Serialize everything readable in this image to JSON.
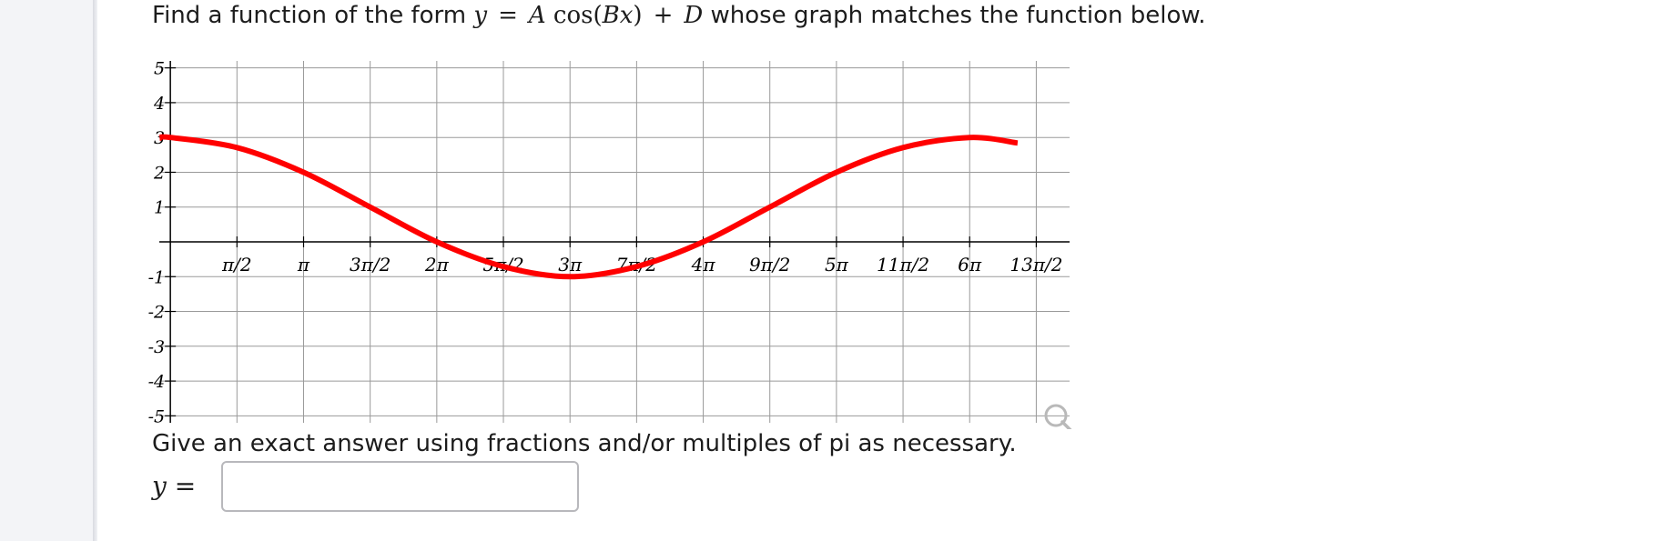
{
  "question": {
    "prefix": "Find a function of the form",
    "var_y": "y",
    "equals": "=",
    "var_A": "A",
    "cos": "cos",
    "paren_open": "(",
    "var_B": "B",
    "var_x": "x",
    "paren_close": ")",
    "plus": "+",
    "var_D": "D",
    "suffix": "whose graph matches the function below."
  },
  "instruction": "Give an exact answer using fractions and/or multiples of pi as necessary.",
  "answer": {
    "label_var": "y",
    "label_eq": "=",
    "value": "",
    "placeholder": ""
  },
  "icons": {
    "zoom": "magnifier-icon"
  },
  "chart_data": {
    "type": "line",
    "x_range_pi": [
      -0.083,
      6.75
    ],
    "y_range": [
      -5.2,
      5.2
    ],
    "grid": true,
    "x_ticks": [
      {
        "value_pi": 0.5,
        "label": "π/2"
      },
      {
        "value_pi": 1,
        "label": "π"
      },
      {
        "value_pi": 1.5,
        "label": "3π/2"
      },
      {
        "value_pi": 2,
        "label": "2π"
      },
      {
        "value_pi": 2.5,
        "label": "5π/2"
      },
      {
        "value_pi": 3,
        "label": "3π"
      },
      {
        "value_pi": 3.5,
        "label": "7π/2"
      },
      {
        "value_pi": 4,
        "label": "4π"
      },
      {
        "value_pi": 4.5,
        "label": "9π/2"
      },
      {
        "value_pi": 5,
        "label": "5π"
      },
      {
        "value_pi": 5.5,
        "label": "11π/2"
      },
      {
        "value_pi": 6,
        "label": "6π"
      },
      {
        "value_pi": 6.5,
        "label": "13π/2"
      }
    ],
    "y_ticks": [
      {
        "value": 5,
        "label": "5"
      },
      {
        "value": 4,
        "label": "4"
      },
      {
        "value": 3,
        "label": "3"
      },
      {
        "value": 2,
        "label": "2"
      },
      {
        "value": 1,
        "label": "1"
      },
      {
        "value": -1,
        "label": "-1"
      },
      {
        "value": -2,
        "label": "-2"
      },
      {
        "value": -3,
        "label": "-3"
      },
      {
        "value": -4,
        "label": "-4"
      },
      {
        "value": -5,
        "label": "-5"
      }
    ],
    "series": [
      {
        "color": "#ff0000",
        "x_pi": [
          -0.08,
          0,
          0.5,
          1,
          1.5,
          2,
          2.5,
          3,
          3.5,
          4,
          4.5,
          5,
          5.5,
          6,
          6.36
        ],
        "y": [
          2.98,
          3,
          2.71,
          2,
          1,
          0,
          -0.71,
          -1,
          -0.71,
          0,
          1,
          2,
          2.71,
          3,
          2.84
        ]
      }
    ]
  }
}
